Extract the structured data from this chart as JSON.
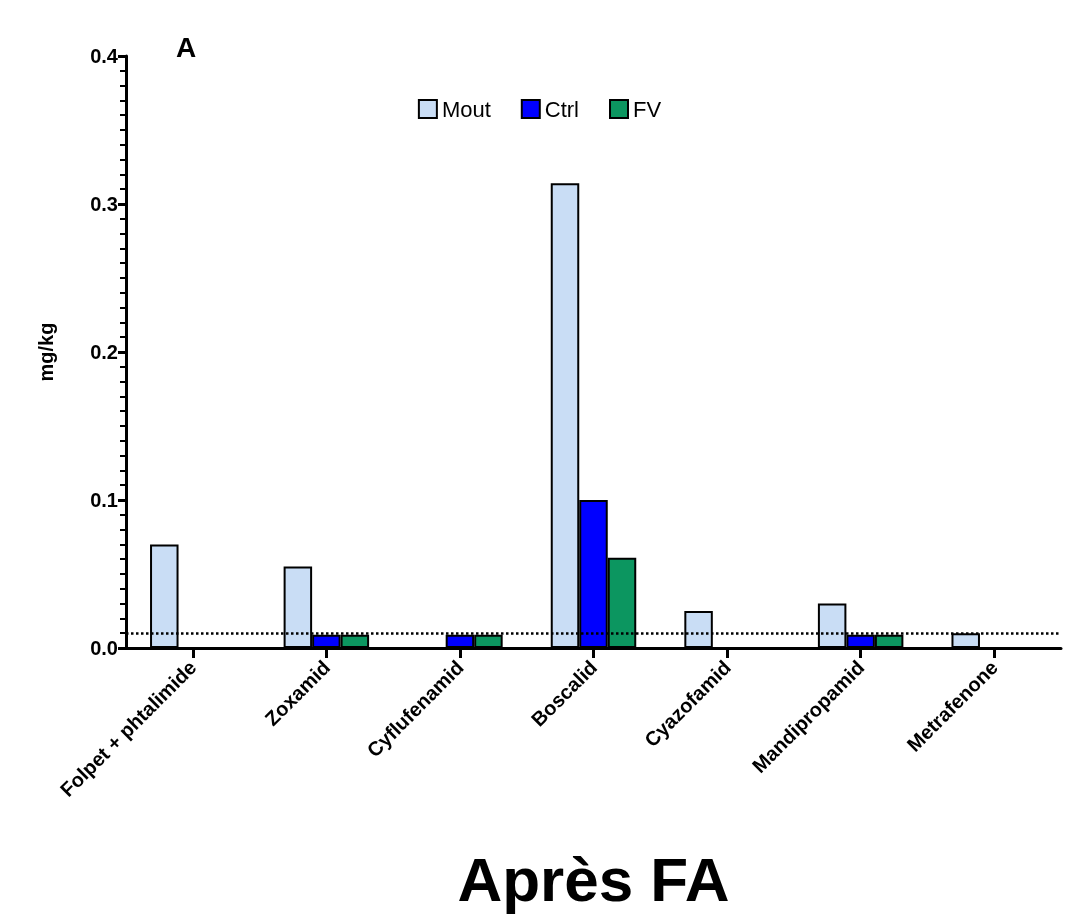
{
  "chart_data": {
    "type": "bar",
    "xlabel": "Après FA",
    "ylabel": "mg/kg",
    "annotations": [
      "A"
    ],
    "categories": [
      "Folpet + phtalimide",
      "Zoxamid",
      "Cyflufenamid",
      "Boscalid",
      "Cyazofamid",
      "Mandipropamid",
      "Metrafenone"
    ],
    "series": [
      {
        "name": "Mout",
        "color": "#c9ddf5",
        "values": [
          0.07,
          0.055,
          null,
          0.314,
          0.025,
          0.03,
          0.01
        ]
      },
      {
        "name": "Ctrl",
        "color": "#0000ff",
        "values": [
          null,
          0.009,
          0.009,
          0.1,
          null,
          0.009,
          null
        ]
      },
      {
        "name": "FV",
        "color": "#0c9660",
        "values": [
          null,
          0.009,
          0.009,
          0.061,
          null,
          0.009,
          null
        ]
      }
    ],
    "ylim": [
      0,
      0.4
    ],
    "yticks": [
      {
        "value": 0,
        "label": "0.0"
      },
      0.1,
      0.2,
      0.3,
      0.4
    ],
    "grid": false,
    "legend": "top",
    "ref_lines": [
      {
        "axis": "y",
        "value": 0.01,
        "line_style": "dotted",
        "color": "#000000"
      }
    ]
  }
}
